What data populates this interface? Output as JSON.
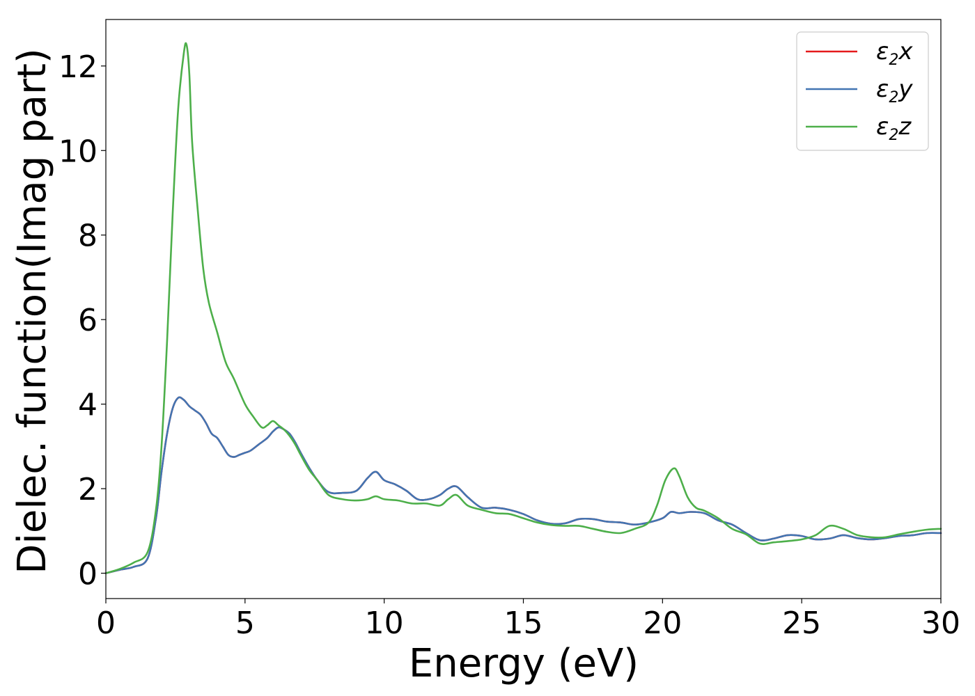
{
  "chart_data": {
    "type": "line",
    "title": "",
    "xlabel": "Energy (eV)",
    "ylabel": "Dielec. function(Imag part)",
    "xlim": [
      0,
      30
    ],
    "ylim": [
      -0.6,
      13.1
    ],
    "xticks": [
      0,
      5,
      10,
      15,
      20,
      25,
      30
    ],
    "yticks": [
      0,
      2,
      4,
      6,
      8,
      10,
      12
    ],
    "grid": false,
    "legend_position": "top-right",
    "series": [
      {
        "name": "ε2x",
        "legend_base": "ε",
        "legend_sub": "2",
        "legend_var": "x",
        "color": "#e41a1c",
        "x": [
          0,
          0.5,
          1.0,
          1.5,
          1.8,
          2.0,
          2.2,
          2.4,
          2.6,
          2.8,
          3.0,
          3.2,
          3.4,
          3.6,
          3.8,
          4.0,
          4.2,
          4.4,
          4.6,
          4.8,
          5.0,
          5.2,
          5.5,
          5.8,
          6.0,
          6.2,
          6.4,
          6.6,
          6.8,
          7.0,
          7.3,
          7.6,
          8.0,
          8.5,
          9.0,
          9.4,
          9.7,
          10.0,
          10.4,
          10.8,
          11.2,
          11.6,
          12.0,
          12.3,
          12.6,
          13.0,
          13.5,
          14.0,
          14.5,
          15.0,
          15.5,
          16.0,
          16.5,
          17.0,
          17.5,
          18.0,
          18.5,
          19.0,
          19.5,
          20.0,
          20.3,
          20.6,
          21.0,
          21.5,
          22.0,
          22.5,
          23.0,
          23.5,
          24.0,
          24.5,
          25.0,
          25.5,
          26.0,
          26.5,
          27.0,
          27.5,
          28.0,
          28.5,
          29.0,
          29.5,
          30.0
        ],
        "y": [
          0,
          0.08,
          0.15,
          0.35,
          1.3,
          2.4,
          3.3,
          3.9,
          4.15,
          4.1,
          3.95,
          3.85,
          3.75,
          3.55,
          3.3,
          3.2,
          3.0,
          2.8,
          2.75,
          2.8,
          2.85,
          2.9,
          3.05,
          3.2,
          3.35,
          3.45,
          3.4,
          3.3,
          3.1,
          2.85,
          2.5,
          2.2,
          1.92,
          1.9,
          1.95,
          2.25,
          2.4,
          2.2,
          2.1,
          1.95,
          1.75,
          1.75,
          1.85,
          2.0,
          2.05,
          1.8,
          1.55,
          1.55,
          1.5,
          1.4,
          1.25,
          1.17,
          1.18,
          1.28,
          1.28,
          1.22,
          1.2,
          1.15,
          1.2,
          1.3,
          1.45,
          1.42,
          1.45,
          1.42,
          1.25,
          1.15,
          0.95,
          0.78,
          0.82,
          0.9,
          0.88,
          0.8,
          0.82,
          0.9,
          0.83,
          0.8,
          0.83,
          0.88,
          0.9,
          0.95,
          0.95
        ]
      },
      {
        "name": "ε2y",
        "legend_base": "ε",
        "legend_sub": "2",
        "legend_var": "y",
        "color": "#4275b2",
        "x": [
          0,
          0.5,
          1.0,
          1.5,
          1.8,
          2.0,
          2.2,
          2.4,
          2.6,
          2.8,
          3.0,
          3.2,
          3.4,
          3.6,
          3.8,
          4.0,
          4.2,
          4.4,
          4.6,
          4.8,
          5.0,
          5.2,
          5.5,
          5.8,
          6.0,
          6.2,
          6.4,
          6.6,
          6.8,
          7.0,
          7.3,
          7.6,
          8.0,
          8.5,
          9.0,
          9.4,
          9.7,
          10.0,
          10.4,
          10.8,
          11.2,
          11.6,
          12.0,
          12.3,
          12.6,
          13.0,
          13.5,
          14.0,
          14.5,
          15.0,
          15.5,
          16.0,
          16.5,
          17.0,
          17.5,
          18.0,
          18.5,
          19.0,
          19.5,
          20.0,
          20.3,
          20.6,
          21.0,
          21.5,
          22.0,
          22.5,
          23.0,
          23.5,
          24.0,
          24.5,
          25.0,
          25.5,
          26.0,
          26.5,
          27.0,
          27.5,
          28.0,
          28.5,
          29.0,
          29.5,
          30.0
        ],
        "y": [
          0,
          0.08,
          0.15,
          0.35,
          1.3,
          2.4,
          3.3,
          3.9,
          4.15,
          4.1,
          3.95,
          3.85,
          3.75,
          3.55,
          3.3,
          3.2,
          3.0,
          2.8,
          2.75,
          2.8,
          2.85,
          2.9,
          3.05,
          3.2,
          3.35,
          3.45,
          3.4,
          3.3,
          3.1,
          2.85,
          2.5,
          2.2,
          1.92,
          1.9,
          1.95,
          2.25,
          2.4,
          2.2,
          2.1,
          1.95,
          1.75,
          1.75,
          1.85,
          2.0,
          2.05,
          1.8,
          1.55,
          1.55,
          1.5,
          1.4,
          1.25,
          1.17,
          1.18,
          1.28,
          1.28,
          1.22,
          1.2,
          1.15,
          1.2,
          1.3,
          1.45,
          1.42,
          1.45,
          1.42,
          1.25,
          1.15,
          0.95,
          0.78,
          0.82,
          0.9,
          0.88,
          0.8,
          0.82,
          0.9,
          0.83,
          0.8,
          0.83,
          0.88,
          0.9,
          0.95,
          0.95
        ]
      },
      {
        "name": "ε2z",
        "legend_base": "ε",
        "legend_sub": "2",
        "legend_var": "z",
        "color": "#4daf4a",
        "x": [
          0,
          0.5,
          1.0,
          1.5,
          1.8,
          2.0,
          2.2,
          2.4,
          2.6,
          2.8,
          2.9,
          3.0,
          3.1,
          3.3,
          3.5,
          3.7,
          4.0,
          4.3,
          4.6,
          5.0,
          5.3,
          5.6,
          5.8,
          6.0,
          6.2,
          6.4,
          6.6,
          6.8,
          7.0,
          7.3,
          7.6,
          8.0,
          8.5,
          9.0,
          9.4,
          9.7,
          10.0,
          10.5,
          11.0,
          11.5,
          12.0,
          12.3,
          12.6,
          13.0,
          13.5,
          14.0,
          14.5,
          15.0,
          15.5,
          16.0,
          16.5,
          17.0,
          17.5,
          18.0,
          18.5,
          19.0,
          19.5,
          19.8,
          20.1,
          20.4,
          20.6,
          20.9,
          21.2,
          21.5,
          22.0,
          22.5,
          23.0,
          23.5,
          24.0,
          24.5,
          25.0,
          25.5,
          26.0,
          26.5,
          27.0,
          27.5,
          28.0,
          28.5,
          29.0,
          29.5,
          30.0
        ],
        "y": [
          0,
          0.1,
          0.25,
          0.5,
          1.5,
          3.0,
          5.5,
          8.5,
          11.0,
          12.3,
          12.5,
          11.8,
          10.2,
          8.6,
          7.2,
          6.4,
          5.7,
          5.0,
          4.6,
          4.0,
          3.7,
          3.45,
          3.5,
          3.6,
          3.5,
          3.4,
          3.25,
          3.05,
          2.8,
          2.45,
          2.2,
          1.85,
          1.75,
          1.72,
          1.75,
          1.82,
          1.75,
          1.72,
          1.65,
          1.65,
          1.6,
          1.75,
          1.85,
          1.6,
          1.5,
          1.42,
          1.4,
          1.3,
          1.2,
          1.14,
          1.12,
          1.12,
          1.05,
          0.98,
          0.95,
          1.05,
          1.2,
          1.6,
          2.2,
          2.48,
          2.3,
          1.8,
          1.55,
          1.48,
          1.3,
          1.05,
          0.92,
          0.7,
          0.73,
          0.76,
          0.8,
          0.9,
          1.12,
          1.05,
          0.9,
          0.85,
          0.85,
          0.92,
          0.98,
          1.03,
          1.05
        ]
      }
    ]
  }
}
